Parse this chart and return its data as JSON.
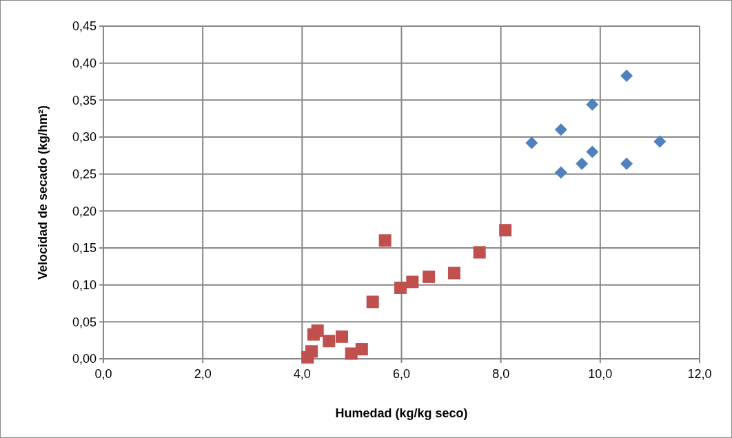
{
  "chart_data": {
    "type": "scatter",
    "xlabel": "Humedad (kg/kg seco)",
    "ylabel": "Velocidad de secado (kg/hm²)",
    "xlim": [
      0,
      12
    ],
    "ylim": [
      0,
      0.45
    ],
    "xticks": [
      {
        "value": 0,
        "label": "0,0"
      },
      {
        "value": 2,
        "label": "2,0"
      },
      {
        "value": 4,
        "label": "4,0"
      },
      {
        "value": 6,
        "label": "6,0"
      },
      {
        "value": 8,
        "label": "8,0"
      },
      {
        "value": 10,
        "label": "10,0"
      },
      {
        "value": 12,
        "label": "12,0"
      }
    ],
    "yticks": [
      {
        "value": 0,
        "label": "0,00"
      },
      {
        "value": 0.05,
        "label": "0,05"
      },
      {
        "value": 0.1,
        "label": "0,10"
      },
      {
        "value": 0.15,
        "label": "0,15"
      },
      {
        "value": 0.2,
        "label": "0,20"
      },
      {
        "value": 0.25,
        "label": "0,25"
      },
      {
        "value": 0.3,
        "label": "0,30"
      },
      {
        "value": 0.35,
        "label": "0,35"
      },
      {
        "value": 0.4,
        "label": "0,40"
      },
      {
        "value": 0.45,
        "label": "0,45"
      }
    ],
    "grid": true,
    "series": [
      {
        "color": "#4f81bd",
        "marker": "diamond",
        "x": [
          8.62,
          9.21,
          9.84,
          10.53,
          11.2,
          9.21,
          9.63,
          9.84,
          10.53
        ],
        "values": [
          0.292,
          0.31,
          0.344,
          0.383,
          0.294,
          0.252,
          0.264,
          0.28,
          0.264
        ]
      },
      {
        "color": "#c0504d",
        "marker": "square",
        "x": [
          5.67,
          8.09,
          7.57,
          7.06,
          6.55,
          6.22,
          5.98,
          5.42,
          4.31,
          4.23,
          4.8,
          4.54,
          5.2,
          4.99,
          4.19,
          4.11
        ],
        "values": [
          0.16,
          0.174,
          0.144,
          0.116,
          0.111,
          0.104,
          0.096,
          0.077,
          0.038,
          0.033,
          0.03,
          0.024,
          0.013,
          0.007,
          0.01,
          0.002
        ]
      }
    ]
  }
}
